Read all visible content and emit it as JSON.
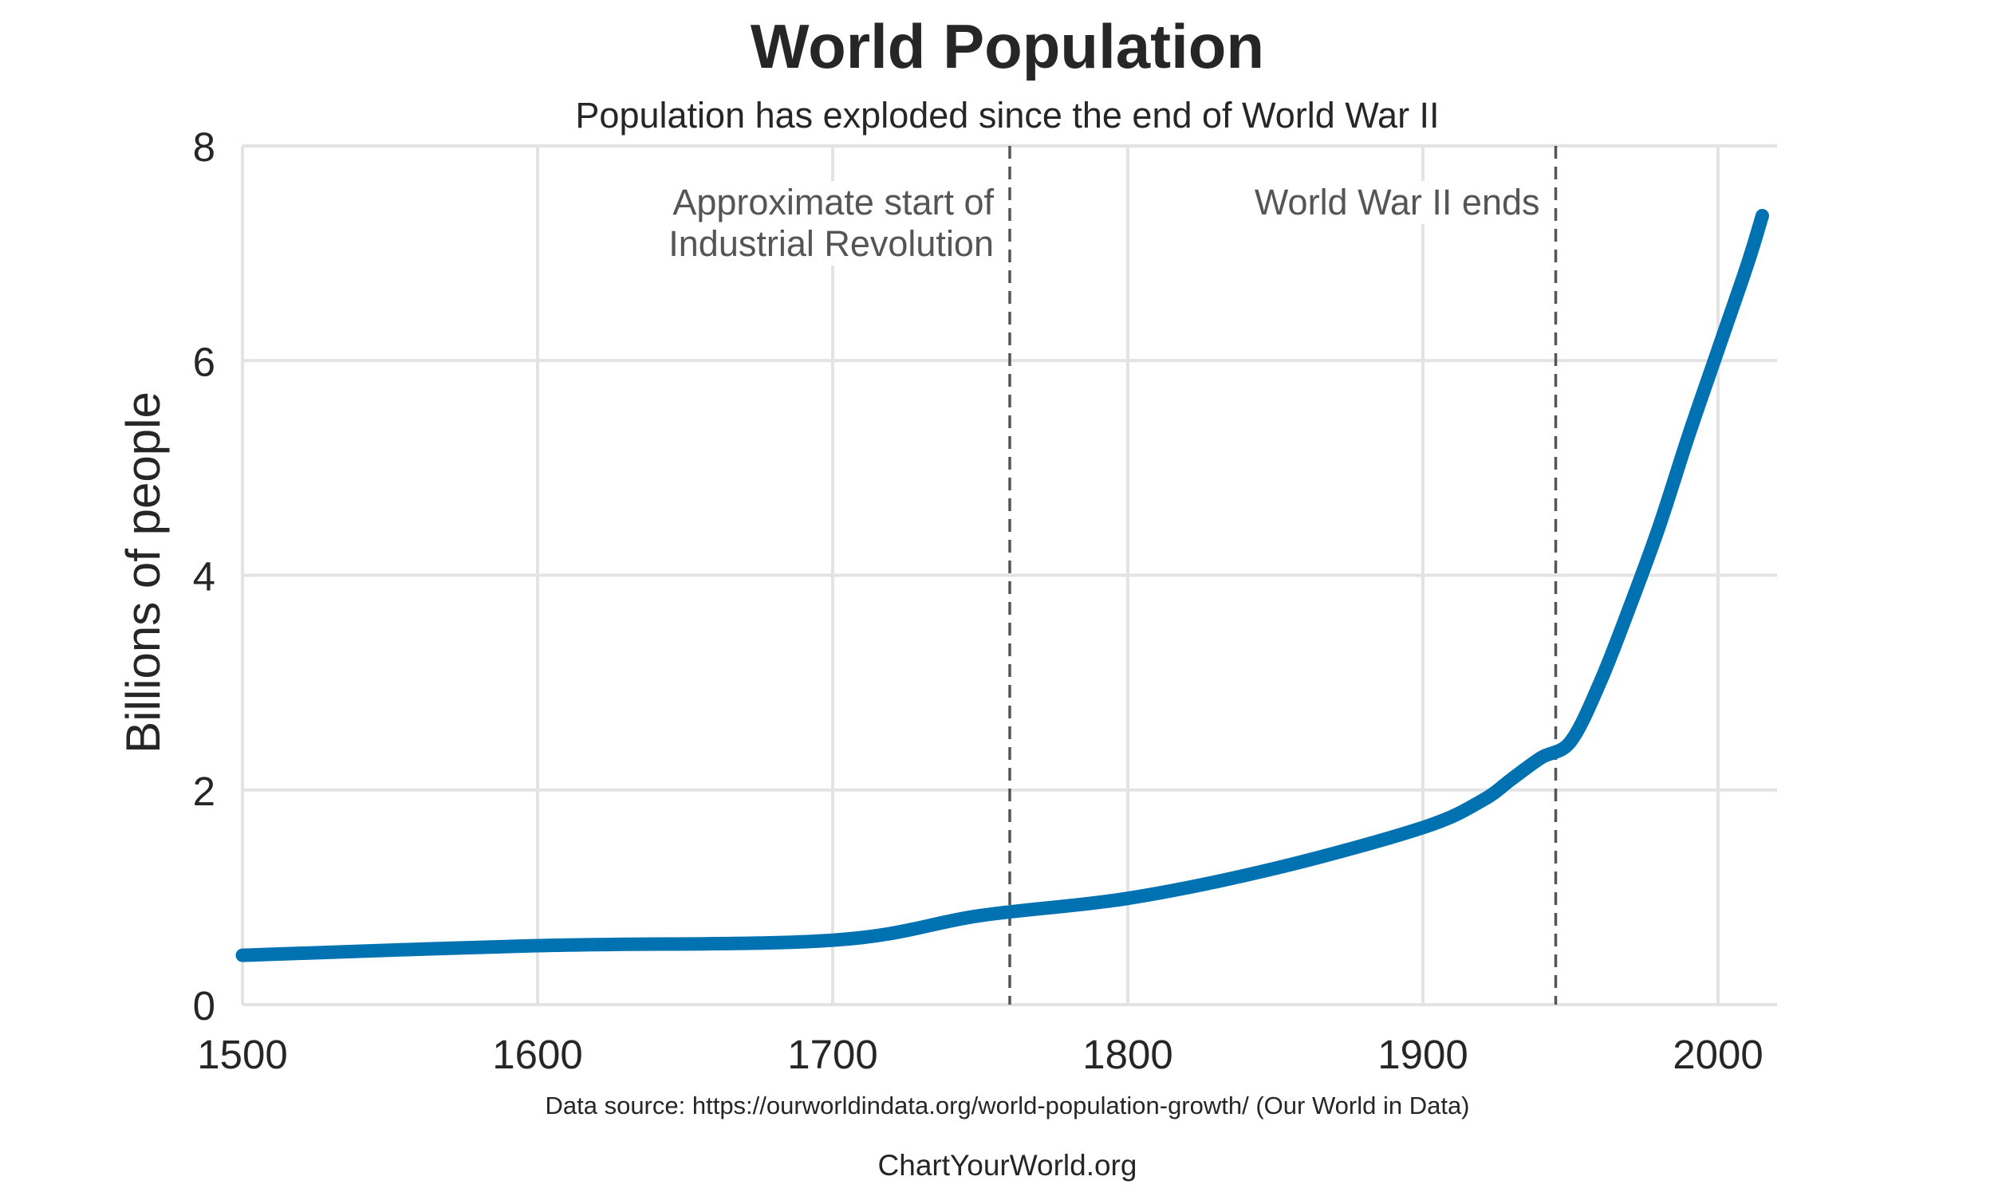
{
  "chart_data": {
    "type": "line",
    "title": "World Population",
    "subtitle": "Population has exploded since the end of World War II",
    "xlabel": "",
    "ylabel": "Billions of people",
    "xlim": [
      1500,
      2020
    ],
    "ylim": [
      0,
      8
    ],
    "x_ticks": [
      1500,
      1600,
      1700,
      1800,
      1900,
      2000
    ],
    "y_ticks": [
      0,
      2,
      4,
      6,
      8
    ],
    "x_tick_labels": [
      "1500",
      "1600",
      "1700",
      "1800",
      "1900",
      "2000"
    ],
    "y_tick_labels": [
      "0",
      "2",
      "4",
      "6",
      "8"
    ],
    "grid": true,
    "series": [
      {
        "color": "#0072b2",
        "x": [
          1500,
          1600,
          1700,
          1750,
          1800,
          1850,
          1900,
          1920,
          1930,
          1940,
          1950,
          1960,
          1970,
          1980,
          1990,
          2000,
          2010,
          2015
        ],
        "y": [
          0.46,
          0.55,
          0.6,
          0.83,
          0.99,
          1.27,
          1.65,
          1.9,
          2.1,
          2.3,
          2.45,
          3.0,
          3.7,
          4.45,
          5.3,
          6.1,
          6.9,
          7.35
        ]
      }
    ],
    "annotations": [
      {
        "x": 1760,
        "lines": [
          "Approximate start of",
          "Industrial Revolution"
        ]
      },
      {
        "x": 1945,
        "lines": [
          "World War II ends"
        ]
      }
    ],
    "source_note": "Data source: https://ourworldindata.org/world-population-growth/ (Our World in Data)",
    "credit": "ChartYourWorld.org",
    "colors": {
      "line": "#0072b2",
      "grid": "#e3e3e3",
      "marker_line": "#555555",
      "annotation_text": "#555555",
      "text": "#262626"
    }
  }
}
